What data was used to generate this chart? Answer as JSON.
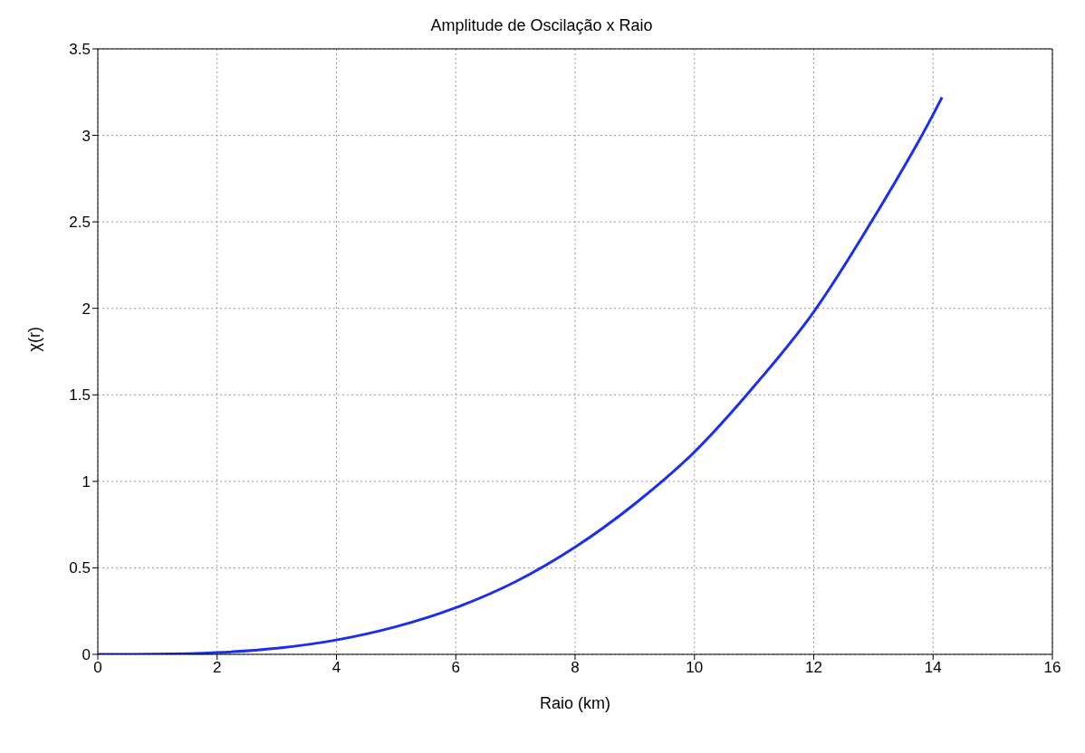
{
  "chart_data": {
    "type": "line",
    "title": "Amplitude de Oscilação x Raio",
    "xlabel": "Raio (km)",
    "ylabel": "χ(r)",
    "x": [
      0,
      1,
      2,
      3,
      4,
      5,
      6,
      7,
      8,
      9,
      10,
      11,
      12,
      13,
      14,
      14.15
    ],
    "series": [
      {
        "color": "#1a2ff0",
        "values": [
          0,
          0.001,
          0.01,
          0.035,
          0.083,
          0.16,
          0.27,
          0.42,
          0.62,
          0.87,
          1.17,
          1.55,
          1.98,
          2.52,
          3.12,
          3.22
        ]
      }
    ],
    "xlim": [
      0,
      16
    ],
    "xticks": [
      0,
      2,
      4,
      6,
      8,
      10,
      12,
      14,
      16
    ],
    "ylim": [
      0,
      3.5
    ],
    "yticks": [
      0,
      0.5,
      1,
      1.5,
      2,
      2.5,
      3,
      3.5
    ],
    "grid": true,
    "legend": false,
    "marker": "none",
    "line_style": "solid"
  }
}
